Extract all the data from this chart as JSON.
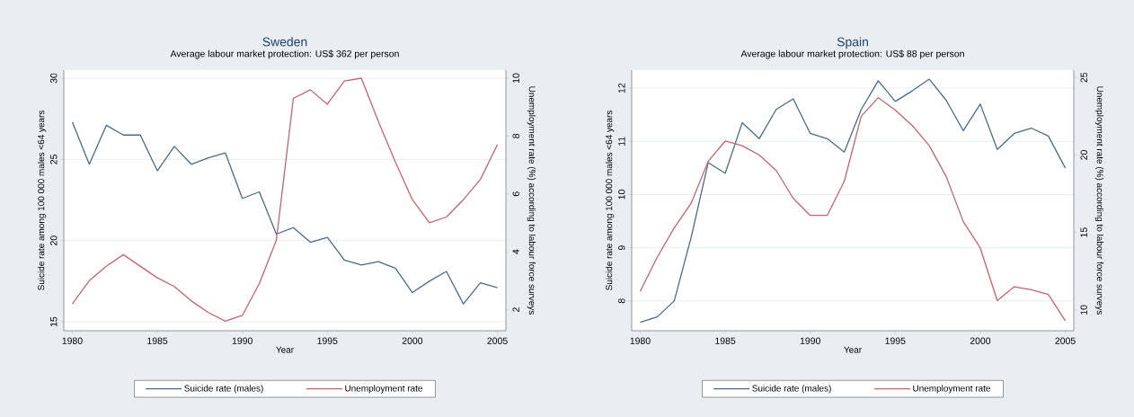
{
  "chart_data": [
    {
      "type": "line",
      "title": "Sweden",
      "subtitle": "Average labour market protection: US$ 362 per person",
      "xlabel": "Year",
      "ylabel": "Suicide rate among 100 000 males <64 years",
      "y2label": "Unemployment rate (%) according to labour force surveys",
      "x": [
        1980,
        1981,
        1982,
        1983,
        1984,
        1985,
        1986,
        1987,
        1988,
        1989,
        1990,
        1991,
        1992,
        1993,
        1994,
        1995,
        1996,
        1997,
        1998,
        1999,
        2000,
        2001,
        2002,
        2003,
        2004,
        2005
      ],
      "xlim": [
        1979.5,
        2005.5
      ],
      "xticks": [
        1980,
        1985,
        1990,
        1995,
        2000,
        2005
      ],
      "ylim": [
        14.45,
        30.5
      ],
      "yticks": [
        15,
        20,
        25,
        30
      ],
      "y2lim": [
        1.27,
        10.28
      ],
      "y2ticks": [
        2,
        4,
        6,
        8,
        10
      ],
      "grid": "y",
      "legend": "bottom",
      "marker": "none",
      "line_style": "solid",
      "series": [
        {
          "name": "Suicide rate (males)",
          "color": "#4b6a85",
          "values": [
            27.3,
            24.7,
            27.1,
            26.5,
            26.5,
            24.3,
            25.8,
            24.7,
            25.1,
            25.4,
            22.6,
            23.0,
            20.4,
            20.8,
            19.9,
            20.2,
            18.8,
            18.5,
            18.7,
            18.3,
            16.8,
            17.5,
            18.1,
            16.1,
            17.4,
            17.1
          ]
        },
        {
          "name": "Unemployment rate",
          "color": "#c4636f",
          "axis": "y2",
          "values": [
            2.2,
            3.0,
            3.5,
            3.9,
            3.5,
            3.1,
            2.8,
            2.3,
            1.9,
            1.6,
            1.8,
            2.9,
            4.4,
            9.3,
            9.6,
            9.1,
            9.9,
            10.0,
            8.5,
            7.1,
            5.8,
            5.0,
            5.2,
            5.8,
            6.5,
            7.7
          ]
        }
      ]
    },
    {
      "type": "line",
      "title": "Spain",
      "subtitle": "Average labour market protection: US$ 88 per person",
      "xlabel": "Year",
      "ylabel": "Suicide rate among 100 000 males <64 years",
      "y2label": "Unemployment rate (%) according to labour force surveys",
      "x": [
        1980,
        1981,
        1982,
        1983,
        1984,
        1985,
        1986,
        1987,
        1988,
        1989,
        1990,
        1991,
        1992,
        1993,
        1994,
        1995,
        1996,
        1997,
        1998,
        1999,
        2000,
        2001,
        2002,
        2003,
        2004,
        2005
      ],
      "xlim": [
        1979.5,
        2005.5
      ],
      "xticks": [
        1980,
        1985,
        1990,
        1995,
        2000,
        2005
      ],
      "ylim": [
        7.44,
        12.34
      ],
      "yticks": [
        8,
        9,
        10,
        11,
        12
      ],
      "y2lim": [
        8.66,
        25.48
      ],
      "y2ticks": [
        10,
        15,
        20,
        25
      ],
      "grid": "y",
      "legend": "bottom",
      "marker": "none",
      "line_style": "solid",
      "series": [
        {
          "name": "Suicide rate (males)",
          "color": "#4b6a85",
          "values": [
            7.6,
            7.7,
            8.0,
            9.2,
            10.6,
            10.4,
            11.35,
            11.05,
            11.6,
            11.8,
            11.15,
            11.05,
            10.8,
            11.6,
            12.14,
            11.75,
            11.95,
            12.17,
            11.77,
            11.2,
            11.7,
            10.85,
            11.15,
            11.25,
            11.1,
            10.5
          ]
        },
        {
          "name": "Unemployment rate",
          "color": "#c4636f",
          "axis": "y2",
          "values": [
            11.2,
            13.4,
            15.3,
            16.9,
            19.6,
            20.9,
            20.6,
            20.0,
            19.0,
            17.2,
            16.1,
            16.1,
            18.3,
            22.5,
            23.7,
            22.9,
            21.9,
            20.6,
            18.6,
            15.7,
            14.0,
            10.6,
            11.5,
            11.3,
            11.0,
            9.3
          ]
        }
      ]
    }
  ]
}
